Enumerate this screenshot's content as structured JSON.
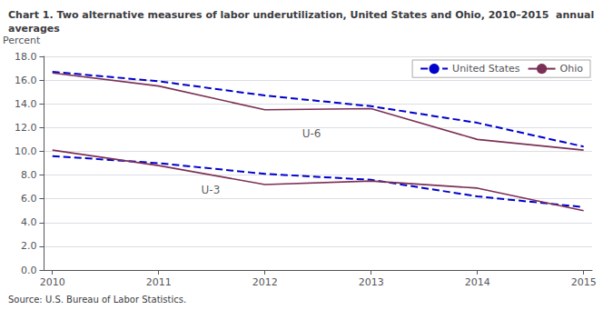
{
  "chart_data": {
    "type": "line",
    "title": "Chart 1. Two alternative measures of labor underutilization, United States and Ohio, 2010–2015  annual\naverages",
    "ylabel": "Percent",
    "source": "Source: U.S. Bureau of Labor Statistics.",
    "x": [
      2010,
      2011,
      2012,
      2013,
      2014,
      2015
    ],
    "series": [
      {
        "name": "United States",
        "color": "#0000CC",
        "line_style": "dashed",
        "values": [
          16.7,
          15.9,
          14.7,
          13.8,
          12.4,
          10.4
        ]
      },
      {
        "name": "Ohio",
        "color": "#7B3055",
        "line_style": "solid",
        "values": [
          16.6,
          15.5,
          13.5,
          13.6,
          11.0,
          10.1
        ]
      },
      {
        "color": "#0000CC",
        "line_style": "dashed",
        "values": [
          9.6,
          9.0,
          8.1,
          7.6,
          6.2,
          5.3
        ]
      },
      {
        "color": "#7B3055",
        "line_style": "solid",
        "values": [
          10.1,
          8.8,
          7.2,
          7.5,
          6.9,
          5.0
        ]
      }
    ],
    "xlim": [
      2009.92,
      2015.08
    ],
    "xticks": [
      2010,
      2011,
      2012,
      2013,
      2014,
      2015
    ],
    "ylim": [
      0.0,
      18.0
    ],
    "yticks": [
      {
        "value": 0.0,
        "label": "0.0"
      },
      {
        "value": 2.0,
        "label": "2.0"
      },
      {
        "value": 4.0,
        "label": "4.0"
      },
      {
        "value": 6.0,
        "label": "6.0"
      },
      {
        "value": 8.0,
        "label": "8.0"
      },
      {
        "value": 10.0,
        "label": "10.0"
      },
      {
        "value": 12.0,
        "label": "12.0"
      },
      {
        "value": 14.0,
        "label": "14.0"
      },
      {
        "value": 16.0,
        "label": "16.0"
      },
      {
        "value": 18.0,
        "label": "18.0"
      }
    ],
    "annotations": [
      {
        "text": "U-6",
        "x": 2012.35,
        "y": 11.0
      },
      {
        "text": "U-3",
        "x": 2011.4,
        "y": 6.3
      }
    ],
    "grid": true,
    "legend": "upper right"
  }
}
